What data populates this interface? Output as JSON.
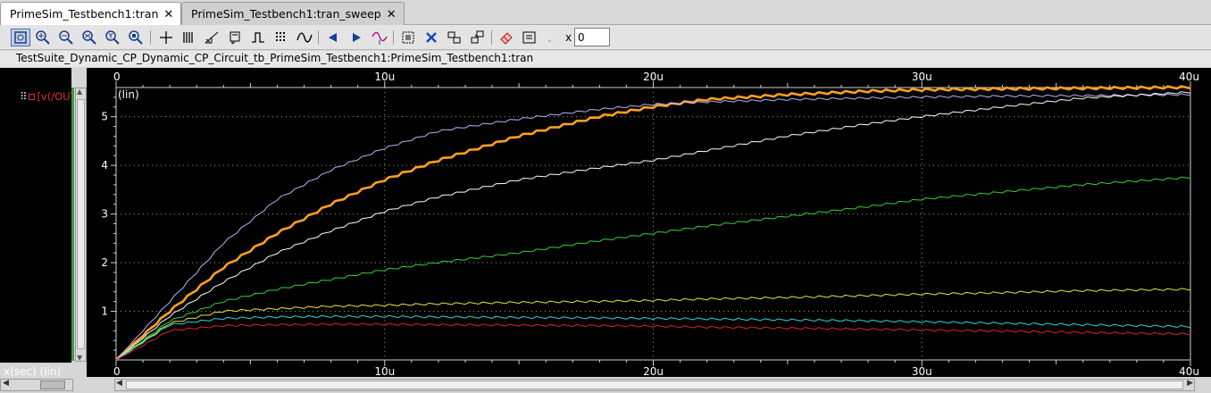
{
  "tabs": [
    {
      "label": "PrimeSim_Testbench1:tran",
      "close": "✕",
      "active": true
    },
    {
      "label": "PrimeSim_Testbench1:tran_sweep",
      "close": "✕",
      "active": false
    }
  ],
  "toolbar": {
    "icons": [
      "zoom-fit-icon",
      "zoom-in-icon",
      "zoom-out-icon",
      "zoom-x-icon",
      "zoom-y-icon",
      "zoom-box-icon",
      "crosshair-icon",
      "bars-icon",
      "slope-icon",
      "bookmark-icon",
      "pulse-icon",
      "grid-icon",
      "wave-icon",
      "prev-icon",
      "next-icon",
      "wave-marker-icon",
      "select-icon",
      "delete-icon",
      "group-icon",
      "ungroup-icon",
      "eraser-icon",
      "panel-icon"
    ],
    "x_label": "x",
    "x_value": "0"
  },
  "title": "TestSuite_Dynamic_CP_Dynamic_CP_Circuit_tb_PrimeSim_Testbench1:PrimeSim_Testbench1:tran",
  "signal_list": {
    "label": "[v(/OUT"
  },
  "x_axis_caption": "x(sec) (lin)",
  "y_axis_caption": "(lin)",
  "chart_data": {
    "type": "line",
    "x_scale": "lin",
    "y_scale": "lin",
    "xlim": [
      0,
      40
    ],
    "ylim": [
      0,
      5.6
    ],
    "x_ticks": [
      "0",
      "10u",
      "20u",
      "30u",
      "40u"
    ],
    "y_ticks": [
      "1",
      "2",
      "3",
      "4",
      "5"
    ],
    "grid": true,
    "background": "#000000",
    "series": [
      {
        "color": "#ffa020",
        "highlighted": true,
        "x": [
          0,
          2,
          4,
          6,
          8,
          10,
          12,
          15,
          18,
          20,
          22,
          25,
          28,
          30,
          33,
          36,
          40
        ],
        "y": [
          0,
          1.0,
          1.9,
          2.6,
          3.2,
          3.7,
          4.1,
          4.6,
          5.0,
          5.2,
          5.35,
          5.45,
          5.52,
          5.55,
          5.57,
          5.58,
          5.6
        ]
      },
      {
        "color": "#b4b4ff",
        "x": [
          0,
          2,
          4,
          6,
          8,
          10,
          12,
          15,
          18,
          20,
          22,
          25,
          28,
          30,
          33,
          36,
          40
        ],
        "y": [
          0,
          1.2,
          2.4,
          3.3,
          3.9,
          4.35,
          4.7,
          4.95,
          5.15,
          5.25,
          5.3,
          5.35,
          5.38,
          5.4,
          5.42,
          5.43,
          5.45
        ]
      },
      {
        "color": "#ffffff",
        "x": [
          0,
          2,
          4,
          6,
          8,
          10,
          12,
          15,
          18,
          20,
          22,
          25,
          28,
          30,
          33,
          36,
          40
        ],
        "y": [
          0,
          0.9,
          1.6,
          2.2,
          2.65,
          3.05,
          3.35,
          3.7,
          3.95,
          4.1,
          4.3,
          4.6,
          4.85,
          5.0,
          5.2,
          5.38,
          5.5
        ]
      },
      {
        "color": "#3ccf3c",
        "x": [
          0,
          2,
          4,
          6,
          8,
          10,
          12,
          15,
          18,
          20,
          22,
          25,
          28,
          30,
          33,
          36,
          40
        ],
        "y": [
          0,
          0.8,
          1.2,
          1.45,
          1.65,
          1.85,
          2.0,
          2.2,
          2.45,
          2.6,
          2.75,
          2.95,
          3.15,
          3.3,
          3.45,
          3.6,
          3.75
        ]
      },
      {
        "color": "#e8e83c",
        "x": [
          0,
          2,
          4,
          6,
          8,
          10,
          12,
          15,
          18,
          20,
          22,
          25,
          28,
          30,
          33,
          36,
          40
        ],
        "y": [
          0,
          0.75,
          1.0,
          1.05,
          1.1,
          1.12,
          1.15,
          1.18,
          1.2,
          1.22,
          1.25,
          1.28,
          1.32,
          1.35,
          1.38,
          1.42,
          1.45
        ]
      },
      {
        "color": "#30d8d8",
        "x": [
          0,
          2,
          4,
          6,
          8,
          10,
          12,
          15,
          18,
          20,
          22,
          25,
          28,
          30,
          33,
          36,
          40
        ],
        "y": [
          0,
          0.72,
          0.85,
          0.88,
          0.89,
          0.89,
          0.88,
          0.87,
          0.86,
          0.85,
          0.84,
          0.82,
          0.8,
          0.78,
          0.75,
          0.72,
          0.68
        ]
      },
      {
        "color": "#e02424",
        "x": [
          0,
          2,
          4,
          6,
          8,
          10,
          12,
          15,
          18,
          20,
          22,
          25,
          28,
          30,
          33,
          36,
          40
        ],
        "y": [
          0,
          0.6,
          0.7,
          0.72,
          0.73,
          0.73,
          0.72,
          0.71,
          0.7,
          0.69,
          0.67,
          0.65,
          0.63,
          0.61,
          0.59,
          0.56,
          0.53
        ]
      }
    ]
  }
}
